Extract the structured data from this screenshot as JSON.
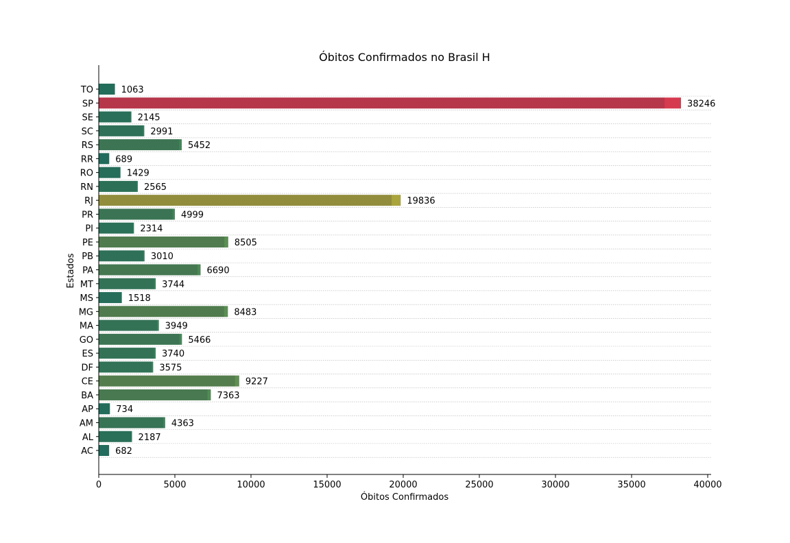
{
  "chart_data": {
    "type": "bar",
    "orientation": "horizontal",
    "title": "Óbitos Confirmados no Brasil H",
    "xlabel": "Óbitos Confirmados",
    "ylabel": "Estados",
    "xlim": [
      0,
      40000
    ],
    "xticks": [
      0,
      5000,
      10000,
      15000,
      20000,
      25000,
      30000,
      35000,
      40000
    ],
    "grid": "horizontal dotted",
    "categories": [
      "TO",
      "SP",
      "SE",
      "SC",
      "RS",
      "RR",
      "RO",
      "RN",
      "RJ",
      "PR",
      "PI",
      "PE",
      "PB",
      "PA",
      "MT",
      "MS",
      "MG",
      "MA",
      "GO",
      "ES",
      "DF",
      "CE",
      "BA",
      "AP",
      "AM",
      "AL",
      "AC"
    ],
    "values": [
      1063,
      38246,
      2145,
      2991,
      5452,
      689,
      1429,
      2565,
      19836,
      4999,
      2314,
      8505,
      3010,
      6690,
      3744,
      1518,
      8483,
      3949,
      5466,
      3740,
      3575,
      9227,
      7363,
      734,
      4363,
      2187,
      682
    ],
    "colormap": {
      "low": "#1b7a64",
      "mid": "#a8a83c",
      "high": "#d63a4e"
    }
  }
}
